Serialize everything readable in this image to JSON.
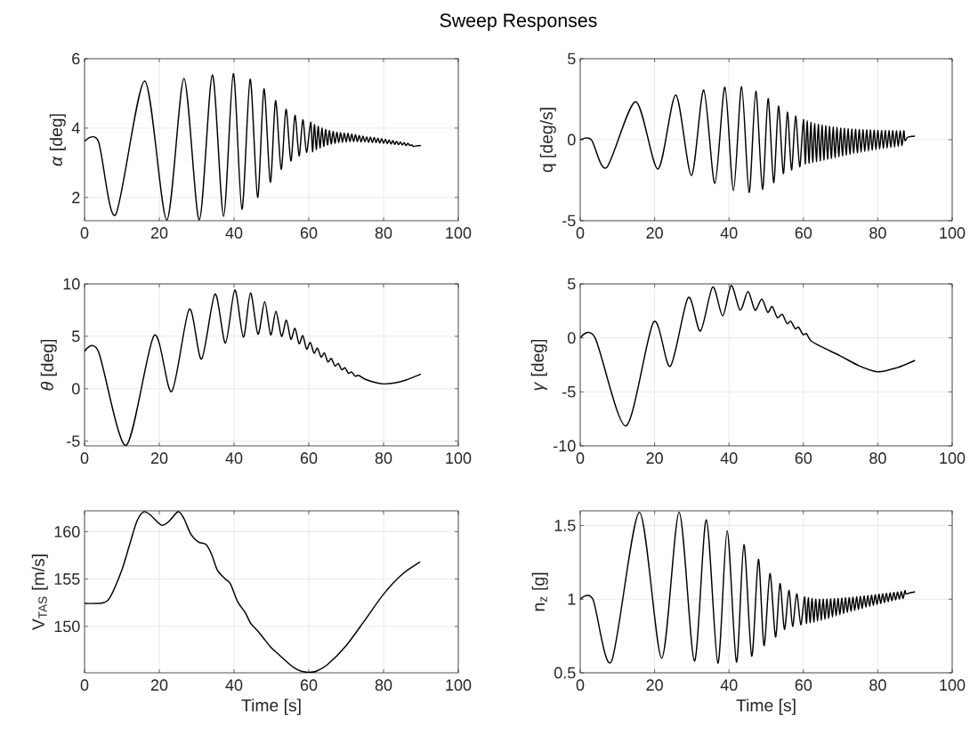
{
  "chart_data": [
    {
      "type": "line",
      "title": "Sweep Responses",
      "ylabel": "*α* [deg]",
      "grid": true,
      "xlim": [
        0,
        100
      ],
      "xticks": [
        0,
        20,
        40,
        60,
        80,
        100
      ],
      "ylim": [
        1.33,
        6
      ],
      "yticks": [
        2,
        4,
        6
      ],
      "x": [
        0,
        3.7,
        8.3,
        16.1,
        22.0,
        26.6,
        30.7,
        34.2,
        37.2,
        39.8,
        42.1,
        44.3,
        46.3,
        48.0,
        49.7,
        51.1,
        52.6,
        53.9,
        55.2,
        56.3,
        57.4,
        58.4,
        59.4,
        60.5,
        61,
        61.5,
        62,
        62.5,
        63,
        63.5,
        64,
        64.5,
        65,
        65.5,
        66,
        66.5,
        67,
        67.5,
        68,
        68.5,
        69,
        69.5,
        70,
        70.5,
        71,
        71.5,
        72,
        72.5,
        73,
        73.5,
        74,
        74.5,
        75,
        75.5,
        76,
        76.5,
        77,
        77.5,
        78,
        78.5,
        79,
        79.5,
        80,
        80.5,
        81,
        81.5,
        82,
        82.5,
        83,
        83.5,
        84,
        84.5,
        85,
        85.5,
        86,
        86.5,
        87,
        87.5,
        88,
        89,
        90
      ],
      "series": [
        {
          "color": "#000000",
          "values": [
            3.62,
            3.62,
            1.5,
            5.36,
            1.35,
            5.43,
            1.35,
            5.53,
            1.46,
            5.57,
            1.66,
            5.41,
            2.0,
            5.13,
            2.44,
            4.79,
            2.81,
            4.54,
            3.05,
            4.37,
            3.2,
            4.24,
            3.3,
            4.17,
            3.32,
            4.1,
            3.38,
            4.05,
            3.43,
            4.0,
            3.47,
            3.96,
            3.51,
            3.93,
            3.54,
            3.9,
            3.56,
            3.88,
            3.58,
            3.87,
            3.59,
            3.86,
            3.6,
            3.85,
            3.61,
            3.83,
            3.61,
            3.81,
            3.61,
            3.79,
            3.6,
            3.77,
            3.6,
            3.75,
            3.59,
            3.74,
            3.58,
            3.73,
            3.58,
            3.71,
            3.57,
            3.7,
            3.56,
            3.68,
            3.55,
            3.66,
            3.54,
            3.64,
            3.53,
            3.62,
            3.52,
            3.6,
            3.51,
            3.58,
            3.5,
            3.56,
            3.5,
            3.52,
            3.47,
            3.49,
            3.5
          ]
        }
      ]
    },
    {
      "type": "line",
      "ylabel": "q [deg/s]",
      "grid": true,
      "xlim": [
        0,
        100
      ],
      "xticks": [
        0,
        20,
        40,
        60,
        80,
        100
      ],
      "ylim": [
        -5,
        5
      ],
      "yticks": [
        -5,
        0,
        5
      ],
      "x": [
        0,
        3,
        7.1,
        14.9,
        20.9,
        25.7,
        29.9,
        33.2,
        36.2,
        38.9,
        41.2,
        43.4,
        45.4,
        47.2,
        49,
        50.5,
        52,
        53.3,
        54.6,
        55.7,
        56.8,
        57.9,
        59,
        60,
        60.5,
        61,
        61.5,
        62,
        62.5,
        63,
        63.5,
        64,
        64.5,
        65,
        65.5,
        66,
        66.5,
        67,
        67.5,
        68,
        68.5,
        69,
        69.5,
        70,
        70.5,
        71,
        71.5,
        72,
        72.5,
        73,
        73.5,
        74,
        74.5,
        75,
        75.5,
        76,
        76.5,
        77,
        77.5,
        78,
        78.5,
        79,
        79.5,
        80,
        80.5,
        81,
        81.5,
        82,
        82.5,
        83,
        83.5,
        84,
        84.5,
        85,
        85.5,
        86,
        86.5,
        87,
        87.3,
        88,
        89,
        90
      ],
      "series": [
        {
          "color": "#000000",
          "values": [
            0,
            0,
            -1.72,
            2.35,
            -1.81,
            2.76,
            -2.22,
            3.06,
            -2.7,
            3.24,
            -3.15,
            3.28,
            -3.26,
            3.0,
            -3.06,
            2.54,
            -2.65,
            2.07,
            -2.09,
            1.7,
            -1.87,
            1.46,
            -1.67,
            1.24,
            -1.5,
            1.15,
            -1.45,
            1.07,
            -1.4,
            1.0,
            -1.35,
            0.95,
            -1.3,
            0.9,
            -1.25,
            0.86,
            -1.2,
            0.82,
            -1.15,
            0.78,
            -1.1,
            0.75,
            -1.05,
            0.72,
            -1.0,
            0.7,
            -0.95,
            0.68,
            -0.9,
            0.66,
            -0.86,
            0.65,
            -0.82,
            0.63,
            -0.78,
            0.62,
            -0.74,
            0.61,
            -0.7,
            0.6,
            -0.66,
            0.59,
            -0.62,
            0.58,
            -0.58,
            0.57,
            -0.55,
            0.57,
            -0.52,
            0.56,
            -0.48,
            0.56,
            -0.45,
            0.55,
            -0.42,
            0.55,
            -0.38,
            0.55,
            -0.05,
            0.15,
            0.2,
            0.22
          ]
        }
      ]
    },
    {
      "type": "line",
      "ylabel": "*θ* [deg]",
      "grid": true,
      "xlim": [
        0,
        100
      ],
      "xticks": [
        0,
        20,
        40,
        60,
        80,
        100
      ],
      "ylim": [
        -5.45,
        10
      ],
      "yticks": [
        -5,
        0,
        5,
        10
      ],
      "x": [
        0,
        3.7,
        11.1,
        18.6,
        23.3,
        28,
        31.3,
        34.9,
        37.7,
        40.2,
        42.5,
        44.4,
        46.4,
        48.2,
        49.8,
        51.2,
        52.7,
        54,
        55.2,
        56.3,
        57.4,
        58.4,
        59.4,
        60.4,
        61.4,
        62.3,
        63.3,
        64.2,
        65.1,
        66,
        67,
        67.9,
        68.8,
        69.7,
        70.6,
        71.5,
        72.4,
        73.3,
        75,
        78,
        80,
        83,
        86,
        90
      ],
      "series": [
        {
          "color": "#000000",
          "values": [
            3.56,
            3.56,
            -5.4,
            5.08,
            -0.27,
            7.59,
            2.83,
            9.03,
            4.35,
            9.42,
            4.92,
            9.14,
            5.2,
            8.3,
            5.14,
            7.39,
            5.0,
            6.55,
            4.72,
            5.76,
            4.3,
            5.06,
            3.79,
            4.41,
            3.4,
            3.87,
            3.03,
            3.4,
            2.55,
            2.89,
            2.18,
            2.41,
            1.82,
            1.99,
            1.48,
            1.59,
            1.2,
            1.28,
            0.92,
            0.58,
            0.46,
            0.55,
            0.83,
            1.39
          ]
        }
      ]
    },
    {
      "type": "line",
      "ylabel": "*γ* [deg]",
      "grid": true,
      "xlim": [
        0,
        100
      ],
      "xticks": [
        0,
        20,
        40,
        60,
        80,
        100
      ],
      "ylim": [
        -10,
        5
      ],
      "yticks": [
        -10,
        -5,
        0,
        5
      ],
      "x": [
        0,
        4,
        12.3,
        19.7,
        24.2,
        29,
        32.3,
        35.6,
        38.3,
        40.6,
        43,
        45.1,
        47,
        48.8,
        50.4,
        51.6,
        53,
        54.3,
        55.6,
        56.6,
        57.8,
        58.7,
        59.9,
        60.8,
        62,
        65,
        70,
        75,
        80,
        85,
        90
      ],
      "series": [
        {
          "color": "#000000",
          "values": [
            0,
            0,
            -8.15,
            1.46,
            -2.64,
            3.72,
            0.63,
            4.71,
            2.04,
            4.85,
            2.56,
            4.3,
            2.56,
            3.6,
            2.37,
            2.9,
            1.87,
            2.18,
            1.32,
            1.54,
            0.85,
            0.99,
            0.3,
            0.39,
            -0.25,
            -0.85,
            -1.68,
            -2.59,
            -3.14,
            -2.78,
            -2.09
          ]
        }
      ]
    },
    {
      "type": "line",
      "xlabel": "Time [s]",
      "ylabel": "V$_{TAS}$ [m/s]",
      "grid": true,
      "xlim": [
        0,
        100
      ],
      "xticks": [
        0,
        20,
        40,
        60,
        80,
        100
      ],
      "ylim": [
        145.1,
        162.2
      ],
      "yticks": [
        150,
        155,
        160
      ],
      "x": [
        0,
        5,
        7,
        10,
        12,
        14,
        15.8,
        17.5,
        20.5,
        22.5,
        25,
        26.5,
        28.5,
        30.5,
        32.5,
        34,
        35.5,
        37.5,
        39,
        41,
        43,
        44.5,
        46.5,
        48,
        50,
        52,
        54,
        56,
        58,
        60,
        62,
        65,
        70,
        75,
        80,
        85,
        89.8
      ],
      "series": [
        {
          "color": "#000000",
          "values": [
            152.42,
            152.5,
            153.2,
            155.97,
            158.55,
            161.1,
            162.1,
            161.8,
            160.7,
            161.06,
            162.1,
            161.45,
            159.7,
            158.9,
            158.65,
            157.6,
            155.97,
            155.06,
            154.5,
            152.58,
            151.45,
            150.3,
            149.45,
            148.7,
            147.74,
            147.03,
            146.3,
            145.65,
            145.26,
            145.15,
            145.26,
            145.97,
            147.97,
            150.65,
            153.4,
            155.5,
            156.8
          ]
        }
      ]
    },
    {
      "type": "line",
      "xlabel": "Time [s]",
      "ylabel": "n$_{z}$ [g]",
      "grid": true,
      "xlim": [
        0,
        100
      ],
      "xticks": [
        0,
        20,
        40,
        60,
        80,
        100
      ],
      "ylim": [
        0.5,
        1.6
      ],
      "yticks": [
        0.5,
        1,
        1.5
      ],
      "x": [
        0,
        3.4,
        8.4,
        15.9,
        21.9,
        26.6,
        30.7,
        33.9,
        37.0,
        39.5,
        42.0,
        44.0,
        46.1,
        47.9,
        49.4,
        51.0,
        52.5,
        53.7,
        54.9,
        56.1,
        57.1,
        58.2,
        59.3,
        60.3,
        60.8,
        61.3,
        61.8,
        62.3,
        62.8,
        63.3,
        63.8,
        64.3,
        64.8,
        65.3,
        65.8,
        66.3,
        66.8,
        67.3,
        67.8,
        68.3,
        68.8,
        69.3,
        69.8,
        70.3,
        70.8,
        71.3,
        71.8,
        72.3,
        72.8,
        73.3,
        73.8,
        74.3,
        74.8,
        75.3,
        75.8,
        76.3,
        76.8,
        77.3,
        77.8,
        78.3,
        78.8,
        79.3,
        79.8,
        80.3,
        80.8,
        81.3,
        81.8,
        82.3,
        82.8,
        83.3,
        83.8,
        84.3,
        84.8,
        85.3,
        85.8,
        86.3,
        86.8,
        87.3,
        87.6,
        88.5,
        90
      ],
      "series": [
        {
          "color": "#000000",
          "values": [
            1,
            1,
            0.577,
            1.59,
            0.6,
            1.59,
            0.58,
            1.54,
            0.566,
            1.465,
            0.573,
            1.37,
            0.614,
            1.27,
            0.685,
            1.174,
            0.743,
            1.106,
            0.795,
            1.06,
            0.815,
            1.037,
            0.826,
            1.017,
            0.835,
            1.01,
            0.84,
            1.005,
            0.845,
            1.0,
            0.85,
            1.0,
            0.855,
            1.0,
            0.862,
            1.0,
            0.87,
            1.002,
            0.878,
            1.003,
            0.886,
            1.005,
            0.894,
            1.007,
            0.902,
            1.009,
            0.91,
            1.011,
            0.917,
            1.013,
            0.924,
            1.016,
            0.931,
            1.019,
            0.938,
            1.022,
            0.945,
            1.025,
            0.952,
            1.028,
            0.958,
            1.031,
            0.964,
            1.034,
            0.97,
            1.037,
            0.976,
            1.04,
            0.982,
            1.043,
            0.988,
            1.046,
            0.994,
            1.049,
            1.0,
            1.052,
            1.005,
            1.058,
            1.035,
            1.042,
            1.05
          ]
        }
      ]
    }
  ]
}
